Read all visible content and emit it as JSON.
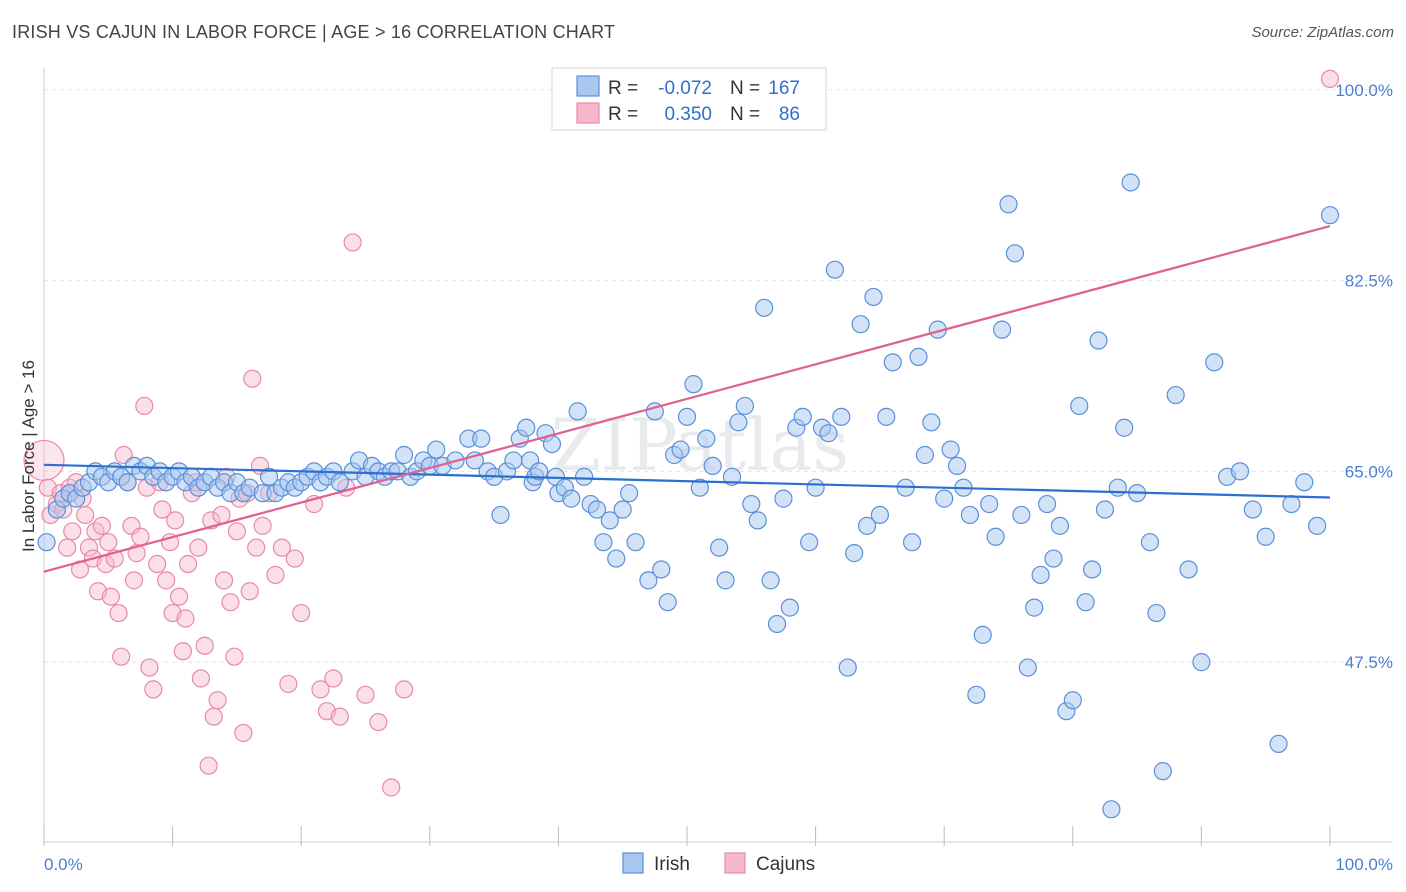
{
  "title": "IRISH VS CAJUN IN LABOR FORCE | AGE > 16 CORRELATION CHART",
  "source": "Source: ZipAtlas.com",
  "colors": {
    "irish_fill": "#a8c8f0",
    "irish_stroke": "#5b8fd9",
    "irish_line": "#2b6fd1",
    "cajun_fill": "#f6b8cc",
    "cajun_stroke": "#e889a8",
    "cajun_line": "#e0608f",
    "axis_label": "#4a7fd4",
    "grid": "#e4e4e4"
  },
  "legend": {
    "rows": [
      {
        "r_label": "R =",
        "r_value": "-0.072",
        "n_label": "N =",
        "n_value": "167"
      },
      {
        "r_label": "R =",
        "r_value": "0.350",
        "n_label": "N =",
        "n_value": "86"
      }
    ]
  },
  "bottom_legend": [
    "Irish",
    "Cajuns"
  ],
  "watermark": "ZIPatlas",
  "chart_data": {
    "type": "scatter",
    "title": "IRISH VS CAJUN IN LABOR FORCE | AGE > 16 CORRELATION CHART",
    "xlabel": "",
    "ylabel": "In Labor Force | Age > 16",
    "xlim": [
      0,
      100
    ],
    "ylim": [
      31,
      102
    ],
    "x_tick_labels": [
      "0.0%",
      "100.0%"
    ],
    "y_ticks": [
      47.5,
      65.0,
      82.5,
      100.0
    ],
    "y_tick_labels": [
      "47.5%",
      "65.0%",
      "82.5%",
      "100.0%"
    ],
    "grid": true,
    "legend_position": "top-center",
    "series": [
      {
        "name": "Irish",
        "r": -0.072,
        "n": 167,
        "trend": {
          "x": [
            0,
            100
          ],
          "y": [
            65.6,
            62.6
          ]
        },
        "points": [
          [
            0.2,
            58.5
          ],
          [
            1,
            61.5
          ],
          [
            1.5,
            62.5
          ],
          [
            2,
            63
          ],
          [
            2.5,
            62.5
          ],
          [
            3,
            63.5
          ],
          [
            3.5,
            64
          ],
          [
            4,
            65
          ],
          [
            4.5,
            64.5
          ],
          [
            5,
            64
          ],
          [
            5.5,
            65
          ],
          [
            6,
            64.5
          ],
          [
            6.5,
            64
          ],
          [
            7,
            65.5
          ],
          [
            7.5,
            65
          ],
          [
            8,
            65.5
          ],
          [
            8.5,
            64.5
          ],
          [
            9,
            65
          ],
          [
            9.5,
            64
          ],
          [
            10,
            64.5
          ],
          [
            10.5,
            65
          ],
          [
            11,
            64
          ],
          [
            11.5,
            64.5
          ],
          [
            12,
            63.5
          ],
          [
            12.5,
            64
          ],
          [
            13,
            64.5
          ],
          [
            13.5,
            63.5
          ],
          [
            14,
            64
          ],
          [
            14.5,
            63
          ],
          [
            15,
            64
          ],
          [
            15.5,
            63
          ],
          [
            16,
            63.5
          ],
          [
            17,
            63
          ],
          [
            17.5,
            64.5
          ],
          [
            18,
            63
          ],
          [
            18.5,
            63.5
          ],
          [
            19,
            64
          ],
          [
            19.5,
            63.5
          ],
          [
            20,
            64
          ],
          [
            20.5,
            64.5
          ],
          [
            21,
            65
          ],
          [
            21.5,
            64
          ],
          [
            22,
            64.5
          ],
          [
            22.5,
            65
          ],
          [
            23,
            64
          ],
          [
            24,
            65
          ],
          [
            24.5,
            66
          ],
          [
            25,
            64.5
          ],
          [
            25.5,
            65.5
          ],
          [
            26,
            65
          ],
          [
            26.5,
            64.5
          ],
          [
            27,
            65
          ],
          [
            27.5,
            65
          ],
          [
            28,
            66.5
          ],
          [
            28.5,
            64.5
          ],
          [
            29,
            65
          ],
          [
            29.5,
            66
          ],
          [
            30,
            65.5
          ],
          [
            30.5,
            67
          ],
          [
            31,
            65.5
          ],
          [
            32,
            66
          ],
          [
            33,
            68
          ],
          [
            33.5,
            66
          ],
          [
            34,
            68
          ],
          [
            34.5,
            65
          ],
          [
            35,
            64.5
          ],
          [
            35.5,
            61
          ],
          [
            36,
            65
          ],
          [
            36.5,
            66
          ],
          [
            37,
            68
          ],
          [
            37.5,
            69
          ],
          [
            37.8,
            66
          ],
          [
            38,
            64
          ],
          [
            38.2,
            64.5
          ],
          [
            38.5,
            65
          ],
          [
            39,
            68.5
          ],
          [
            39.5,
            67.5
          ],
          [
            39.8,
            64.5
          ],
          [
            40,
            63
          ],
          [
            40.5,
            63.5
          ],
          [
            41,
            62.5
          ],
          [
            41.5,
            70.5
          ],
          [
            42,
            64.5
          ],
          [
            42.5,
            62
          ],
          [
            43,
            61.5
          ],
          [
            43.5,
            58.5
          ],
          [
            44,
            60.5
          ],
          [
            44.5,
            57
          ],
          [
            45,
            61.5
          ],
          [
            45.5,
            63
          ],
          [
            46,
            58.5
          ],
          [
            47,
            55
          ],
          [
            47.5,
            70.5
          ],
          [
            48,
            56
          ],
          [
            48.5,
            53
          ],
          [
            49,
            66.5
          ],
          [
            49.5,
            67
          ],
          [
            50,
            70
          ],
          [
            50.5,
            73
          ],
          [
            51,
            63.5
          ],
          [
            51.5,
            68
          ],
          [
            52,
            65.5
          ],
          [
            52.5,
            58
          ],
          [
            53,
            55
          ],
          [
            53.5,
            64.5
          ],
          [
            54,
            69.5
          ],
          [
            54.5,
            71
          ],
          [
            55,
            62
          ],
          [
            55.5,
            60.5
          ],
          [
            56,
            80
          ],
          [
            56.5,
            55
          ],
          [
            57,
            51
          ],
          [
            57.5,
            62.5
          ],
          [
            58,
            52.5
          ],
          [
            58.5,
            69
          ],
          [
            59,
            70
          ],
          [
            59.5,
            58.5
          ],
          [
            60,
            63.5
          ],
          [
            60.5,
            69
          ],
          [
            61,
            68.5
          ],
          [
            61.5,
            83.5
          ],
          [
            62,
            70
          ],
          [
            62.5,
            47
          ],
          [
            63,
            57.5
          ],
          [
            63.5,
            78.5
          ],
          [
            64,
            60
          ],
          [
            64.5,
            81
          ],
          [
            65,
            61
          ],
          [
            65.5,
            70
          ],
          [
            66,
            75
          ],
          [
            67,
            63.5
          ],
          [
            67.5,
            58.5
          ],
          [
            68,
            75.5
          ],
          [
            68.5,
            66.5
          ],
          [
            69,
            69.5
          ],
          [
            69.5,
            78
          ],
          [
            70,
            62.5
          ],
          [
            70.5,
            67
          ],
          [
            71,
            65.5
          ],
          [
            71.5,
            63.5
          ],
          [
            72,
            61
          ],
          [
            72.5,
            44.5
          ],
          [
            73,
            50
          ],
          [
            73.5,
            62
          ],
          [
            74,
            59
          ],
          [
            74.5,
            78
          ],
          [
            75,
            89.5
          ],
          [
            75.5,
            85
          ],
          [
            76,
            61
          ],
          [
            76.5,
            47
          ],
          [
            77,
            52.5
          ],
          [
            77.5,
            55.5
          ],
          [
            78,
            62
          ],
          [
            78.5,
            57
          ],
          [
            79,
            60
          ],
          [
            79.5,
            43
          ],
          [
            80,
            44
          ],
          [
            80.5,
            71
          ],
          [
            81,
            53
          ],
          [
            81.5,
            56
          ],
          [
            82,
            77
          ],
          [
            82.5,
            61.5
          ],
          [
            83,
            34
          ],
          [
            83.5,
            63.5
          ],
          [
            84,
            69
          ],
          [
            84.5,
            91.5
          ],
          [
            85,
            63
          ],
          [
            86,
            58.5
          ],
          [
            86.5,
            52
          ],
          [
            87,
            37.5
          ],
          [
            88,
            72
          ],
          [
            89,
            56
          ],
          [
            90,
            47.5
          ],
          [
            91,
            75
          ],
          [
            92,
            64.5
          ],
          [
            93,
            65
          ],
          [
            94,
            61.5
          ],
          [
            95,
            59
          ],
          [
            96,
            40
          ],
          [
            97,
            62
          ],
          [
            98,
            64
          ],
          [
            99,
            60
          ],
          [
            100,
            88.5
          ]
        ]
      },
      {
        "name": "Cajuns",
        "r": 0.35,
        "n": 86,
        "trend": {
          "x": [
            0,
            100
          ],
          "y": [
            55.8,
            87.5
          ]
        },
        "points": [
          [
            0,
            66
          ],
          [
            0.3,
            63.5
          ],
          [
            0.5,
            61
          ],
          [
            1,
            62
          ],
          [
            1.3,
            63
          ],
          [
            1.5,
            61.5
          ],
          [
            1.8,
            58
          ],
          [
            2,
            63.5
          ],
          [
            2.2,
            59.5
          ],
          [
            2.5,
            64
          ],
          [
            2.8,
            56
          ],
          [
            3,
            62.5
          ],
          [
            3.2,
            61
          ],
          [
            3.5,
            58
          ],
          [
            3.8,
            57
          ],
          [
            4,
            59.5
          ],
          [
            4.2,
            54
          ],
          [
            4.5,
            60
          ],
          [
            4.8,
            56.5
          ],
          [
            5,
            58.5
          ],
          [
            5.2,
            53.5
          ],
          [
            5.5,
            57
          ],
          [
            5.8,
            52
          ],
          [
            6,
            48
          ],
          [
            6.2,
            66.5
          ],
          [
            6.5,
            64
          ],
          [
            6.8,
            60
          ],
          [
            7,
            55
          ],
          [
            7.2,
            57.5
          ],
          [
            7.5,
            59
          ],
          [
            7.8,
            71
          ],
          [
            8,
            63.5
          ],
          [
            8.2,
            47
          ],
          [
            8.5,
            45
          ],
          [
            8.8,
            56.5
          ],
          [
            9,
            64
          ],
          [
            9.2,
            61.5
          ],
          [
            9.5,
            55
          ],
          [
            9.8,
            58.5
          ],
          [
            10,
            52
          ],
          [
            10.2,
            60.5
          ],
          [
            10.5,
            53.5
          ],
          [
            10.8,
            48.5
          ],
          [
            11,
            51.5
          ],
          [
            11.2,
            56.5
          ],
          [
            11.5,
            63
          ],
          [
            11.8,
            64
          ],
          [
            12,
            58
          ],
          [
            12.2,
            46
          ],
          [
            12.5,
            49
          ],
          [
            12.8,
            38
          ],
          [
            13,
            60.5
          ],
          [
            13.2,
            42.5
          ],
          [
            13.5,
            44
          ],
          [
            13.8,
            61
          ],
          [
            14,
            55
          ],
          [
            14.2,
            64.5
          ],
          [
            14.5,
            53
          ],
          [
            14.8,
            48
          ],
          [
            15,
            59.5
          ],
          [
            15.2,
            62.5
          ],
          [
            15.5,
            41
          ],
          [
            15.8,
            63
          ],
          [
            16,
            54
          ],
          [
            16.2,
            73.5
          ],
          [
            16.5,
            58
          ],
          [
            16.8,
            65.5
          ],
          [
            17,
            60
          ],
          [
            17.5,
            63
          ],
          [
            18,
            55.5
          ],
          [
            18.5,
            58
          ],
          [
            19,
            45.5
          ],
          [
            19.5,
            57
          ],
          [
            20,
            52
          ],
          [
            21,
            62
          ],
          [
            21.5,
            45
          ],
          [
            22,
            43
          ],
          [
            22.5,
            46
          ],
          [
            23,
            42.5
          ],
          [
            23.5,
            63.5
          ],
          [
            24,
            86
          ],
          [
            25,
            44.5
          ],
          [
            26,
            42
          ],
          [
            27,
            36
          ],
          [
            28,
            45
          ],
          [
            100,
            101
          ]
        ]
      }
    ]
  }
}
